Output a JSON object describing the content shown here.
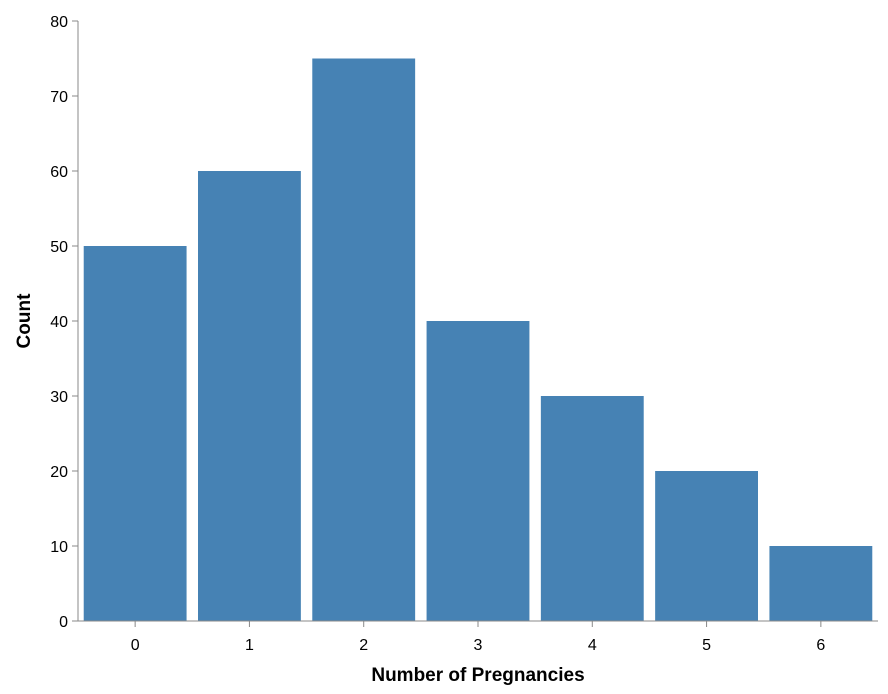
{
  "chart_data": {
    "type": "bar",
    "categories": [
      "0",
      "1",
      "2",
      "3",
      "4",
      "5",
      "6"
    ],
    "values": [
      50,
      60,
      75,
      40,
      30,
      20,
      10
    ],
    "title": "",
    "xlabel": "Number of Pregnancies",
    "ylabel": "Count",
    "ylim": [
      0,
      80
    ],
    "yticks": [
      0,
      10,
      20,
      30,
      40,
      50,
      60,
      70,
      80
    ],
    "grid": false,
    "bar_color": "#4682b4",
    "axis_color": "#888888"
  }
}
